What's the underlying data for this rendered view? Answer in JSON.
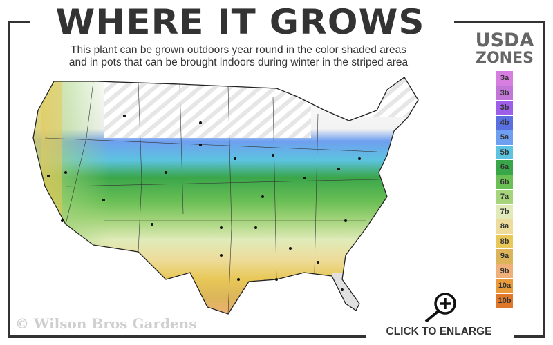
{
  "header": {
    "title": "WHERE IT GROWS",
    "subtitle_line1": "This plant can be grown outdoors year round in the color shaded areas",
    "subtitle_line2": "and in pots that can be brought indoors during winter in the striped area"
  },
  "legend": {
    "title_line1": "USDA",
    "title_line2": "ZONES",
    "zones": [
      {
        "label": "3a",
        "color": "#d77fe0"
      },
      {
        "label": "3b",
        "color": "#c276d8"
      },
      {
        "label": "3b",
        "color": "#9d5fe8"
      },
      {
        "label": "4b",
        "color": "#5b70e0"
      },
      {
        "label": "5a",
        "color": "#6f9ff0"
      },
      {
        "label": "5b",
        "color": "#5cc3e0"
      },
      {
        "label": "6a",
        "color": "#3aa64a"
      },
      {
        "label": "6b",
        "color": "#6abf55"
      },
      {
        "label": "7a",
        "color": "#a5d47c"
      },
      {
        "label": "7b",
        "color": "#e0ebb9"
      },
      {
        "label": "8a",
        "color": "#eddc9b"
      },
      {
        "label": "8b",
        "color": "#e8c858"
      },
      {
        "label": "9a",
        "color": "#dcb55a"
      },
      {
        "label": "9b",
        "color": "#f0b07a"
      },
      {
        "label": "10a",
        "color": "#e99a3a"
      },
      {
        "label": "10b",
        "color": "#e0782a"
      }
    ]
  },
  "map": {
    "striped_area": "northern states (indoors in winter)",
    "icon": "us-zone-map"
  },
  "footer": {
    "copyright": "© Wilson Bros Gardens",
    "enlarge_label": "CLICK TO ENLARGE",
    "enlarge_icon": "zoom-in-icon"
  }
}
